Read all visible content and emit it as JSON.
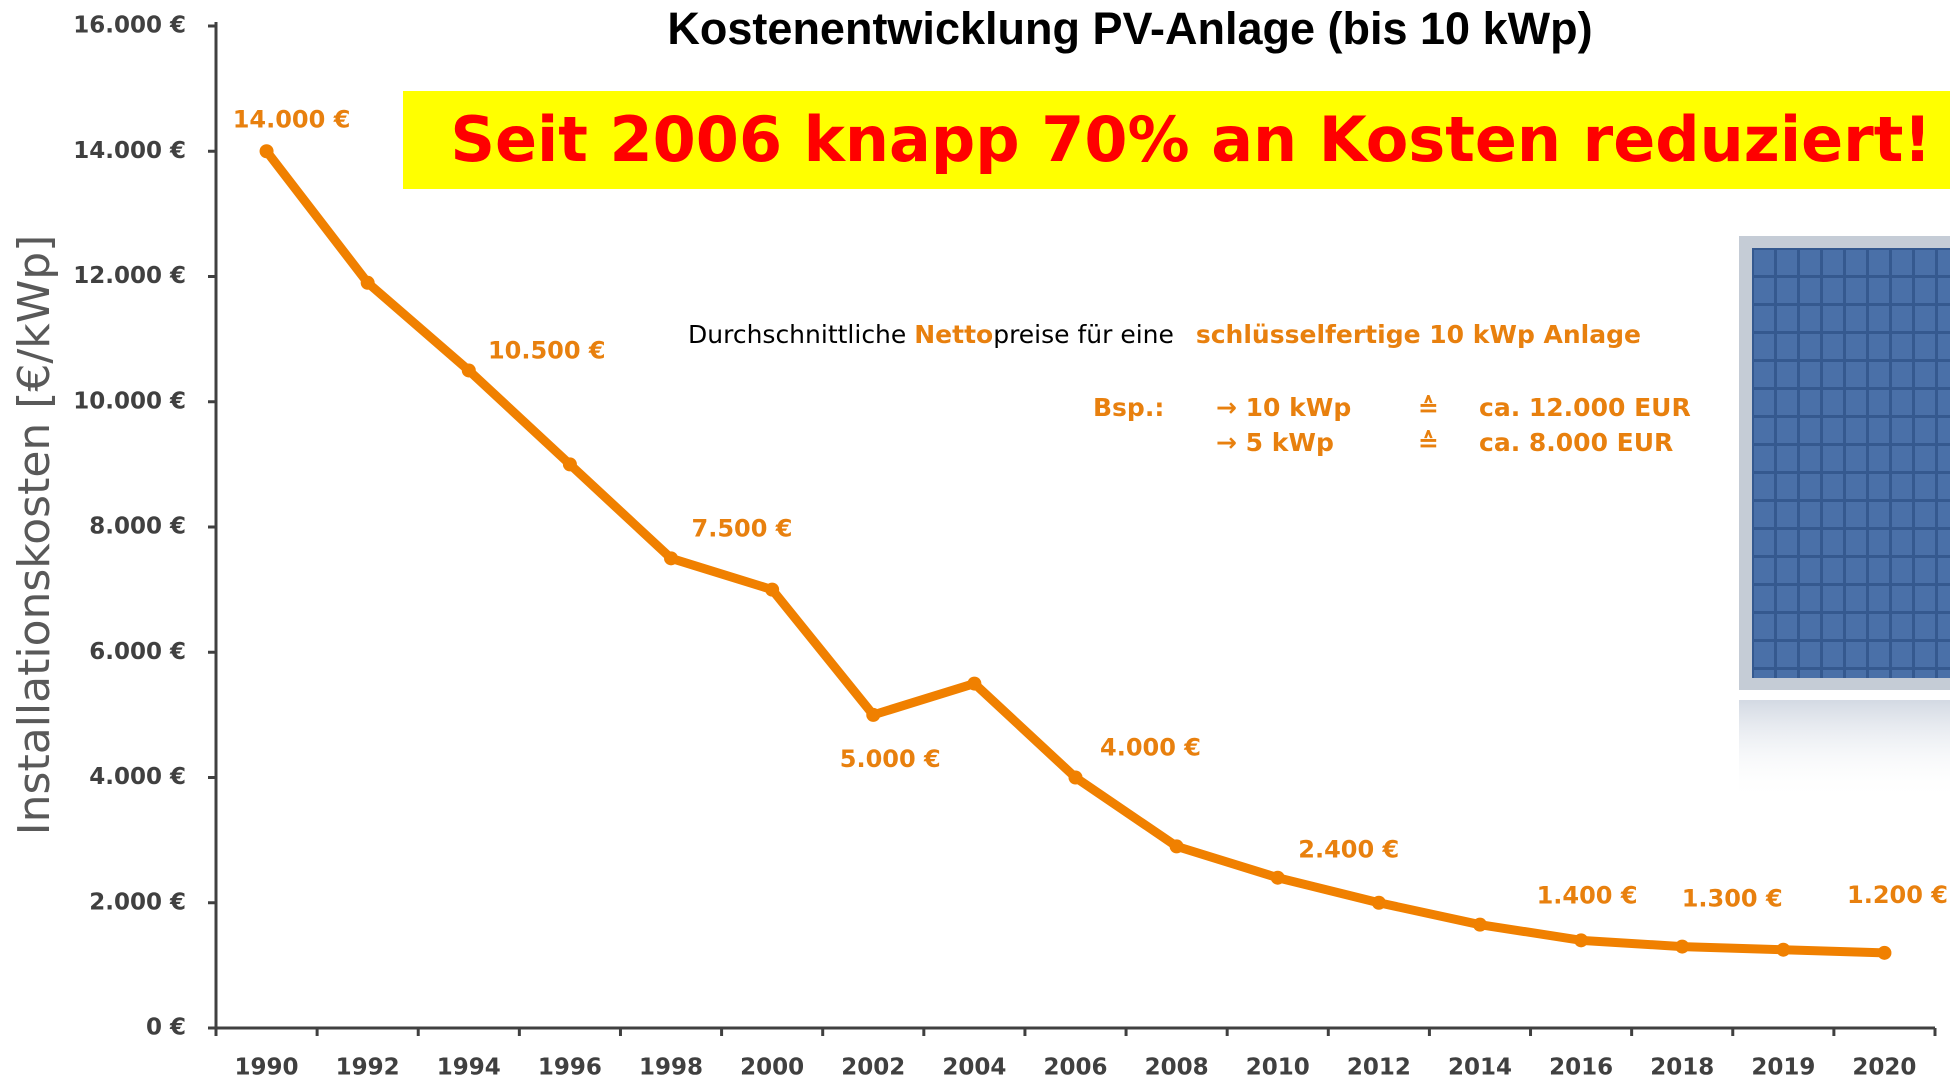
{
  "chart_data": {
    "type": "line",
    "title": "Kostenentwicklung PV-Anlage (bis 10 kWp)",
    "banner": "Seit 2006 knapp 70% an Kosten reduziert!",
    "y_label": "Installationskosten   [€/kWp]",
    "note": {
      "parts": [
        "Durchschnittliche ",
        "Netto",
        "preise für eine ",
        "schlüsselfertige 10 kWp Anlage"
      ],
      "example_label": "Bsp.:",
      "examples": [
        [
          "→ 10 kWp",
          "≙",
          "ca. 12.000 EUR"
        ],
        [
          "→ 5 kWp",
          "≙",
          "ca. 8.000 EUR"
        ]
      ]
    },
    "categories": [
      "1990",
      "1992",
      "1994",
      "1996",
      "1998",
      "2000",
      "2002",
      "2004",
      "2006",
      "2008",
      "2010",
      "2012",
      "2014",
      "2016",
      "2018",
      "2019",
      "2020"
    ],
    "values": [
      14000,
      11900,
      10500,
      9000,
      7500,
      7000,
      5000,
      5500,
      4000,
      2900,
      2400,
      2000,
      1650,
      1400,
      1300,
      1250,
      1200
    ],
    "value_labels": [
      "14.000 €",
      null,
      "10.500 €",
      null,
      "7.500 €",
      null,
      "5.000 €",
      null,
      "4.000 €",
      null,
      "2.400 €",
      null,
      null,
      "1.400 €",
      "1.300 €",
      null,
      "1.200 €"
    ],
    "color": "#f08000",
    "ylim": [
      0,
      16000
    ],
    "yticks": [
      {
        "value": 0,
        "label": "0 €"
      },
      {
        "value": 2000,
        "label": "2.000 €"
      },
      {
        "value": 4000,
        "label": "4.000 €"
      },
      {
        "value": 6000,
        "label": "6.000 €"
      },
      {
        "value": 8000,
        "label": "8.000 €"
      },
      {
        "value": 10000,
        "label": "10.000 €"
      },
      {
        "value": 12000,
        "label": "12.000 €"
      },
      {
        "value": 14000,
        "label": "14.000 €"
      },
      {
        "value": 16000,
        "label": "16.000 €"
      }
    ],
    "grid": false
  }
}
